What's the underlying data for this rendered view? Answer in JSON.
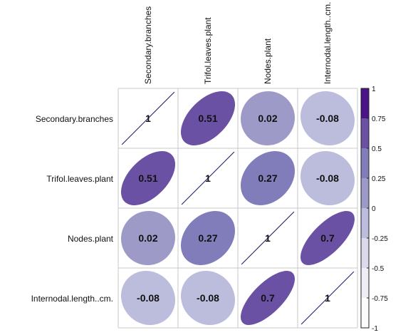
{
  "chart_data": {
    "type": "heatmap",
    "title": "",
    "variables": [
      "Secondary.branches",
      "Trifol.leaves.plant",
      "Nodes.plant",
      "Internodal.length..cm."
    ],
    "matrix": [
      [
        1,
        0.51,
        0.02,
        -0.08
      ],
      [
        0.51,
        1,
        0.27,
        -0.08
      ],
      [
        0.02,
        0.27,
        1,
        0.7
      ],
      [
        -0.08,
        -0.08,
        0.7,
        1
      ]
    ],
    "value_labels": [
      [
        "1",
        "0.51",
        "0.02",
        "-0.08"
      ],
      [
        "0.51",
        "1",
        "0.27",
        "-0.08"
      ],
      [
        "0.02",
        "0.27",
        "1",
        "0.7"
      ],
      [
        "-0.08",
        "-0.08",
        "0.7",
        "1"
      ]
    ],
    "color_scale": {
      "range": [
        -1,
        1
      ],
      "tick_values": [
        1,
        0.75,
        0.5,
        0.25,
        0,
        -0.25,
        -0.5,
        -0.75,
        -1
      ],
      "tick_labels": [
        "1",
        "0.75",
        "0.5",
        "0.25",
        "0",
        "-0.25",
        "-0.5",
        "-0.75",
        "-1"
      ],
      "bands": [
        {
          "from": 0.75,
          "to": 1,
          "color": "#4a1486"
        },
        {
          "from": 0.5,
          "to": 0.75,
          "color": "#6a51a3"
        },
        {
          "from": 0.25,
          "to": 0.5,
          "color": "#807dba"
        },
        {
          "from": 0,
          "to": 0.25,
          "color": "#9e9ac8"
        },
        {
          "from": -0.25,
          "to": 0,
          "color": "#bcbddc"
        },
        {
          "from": -0.5,
          "to": -0.25,
          "color": "#dadaeb"
        },
        {
          "from": -0.75,
          "to": -0.5,
          "color": "#efedf5"
        },
        {
          "from": -1,
          "to": -0.75,
          "color": "#fcfbfd"
        }
      ]
    },
    "shape": "ellipse",
    "grid": true,
    "legend": "right",
    "diagonal_line_color": "#1a1a6e"
  }
}
